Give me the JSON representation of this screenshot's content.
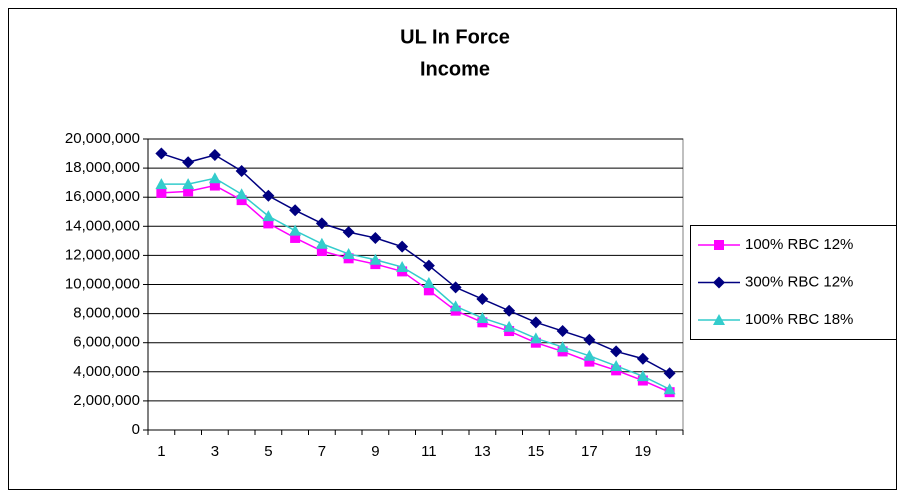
{
  "chart_data": {
    "type": "line",
    "title": [
      "UL In Force",
      "Income"
    ],
    "categories": [
      1,
      null,
      3,
      null,
      5,
      null,
      7,
      null,
      9,
      null,
      11,
      null,
      13,
      null,
      15,
      null,
      17,
      null,
      19,
      null
    ],
    "series": [
      {
        "name": "100% RBC 12%",
        "color": "#ff00ff",
        "marker": "square",
        "values": [
          16300000,
          16400000,
          16800000,
          15800000,
          14200000,
          13200000,
          12300000,
          11800000,
          11400000,
          10900000,
          9600000,
          8200000,
          7400000,
          6800000,
          6000000,
          5400000,
          4700000,
          4100000,
          3400000,
          2600000
        ]
      },
      {
        "name": "300% RBC 12%",
        "color": "#000080",
        "marker": "diamond",
        "values": [
          19000000,
          18400000,
          18900000,
          17800000,
          16100000,
          15100000,
          14200000,
          13600000,
          13200000,
          12600000,
          11300000,
          9800000,
          9000000,
          8200000,
          7400000,
          6800000,
          6200000,
          5400000,
          4900000,
          3900000
        ]
      },
      {
        "name": "100% RBC 18%",
        "color": "#33cccc",
        "marker": "triangle",
        "values": [
          16900000,
          16900000,
          17300000,
          16200000,
          14700000,
          13700000,
          12800000,
          12100000,
          11700000,
          11200000,
          10100000,
          8500000,
          7700000,
          7100000,
          6300000,
          5700000,
          5100000,
          4400000,
          3700000,
          2800000
        ]
      }
    ],
    "ylim": [
      0,
      20000000
    ],
    "yticks": [
      0,
      {
        "value": 2000000,
        "label": "2,000,000"
      },
      {
        "value": 4000000,
        "label": "4,000,000"
      },
      {
        "value": 6000000,
        "label": "6,000,000"
      },
      {
        "value": 8000000,
        "label": "8,000,000"
      },
      {
        "value": 10000000,
        "label": "10,000,000"
      },
      {
        "value": 12000000,
        "label": "12,000,000"
      },
      {
        "value": 14000000,
        "label": "14,000,000"
      },
      {
        "value": 16000000,
        "label": "16,000,000"
      },
      {
        "value": 18000000,
        "label": "18,000,000"
      },
      {
        "value": 20000000,
        "label": "20,000,000"
      }
    ],
    "grid": true,
    "legend": "right"
  }
}
